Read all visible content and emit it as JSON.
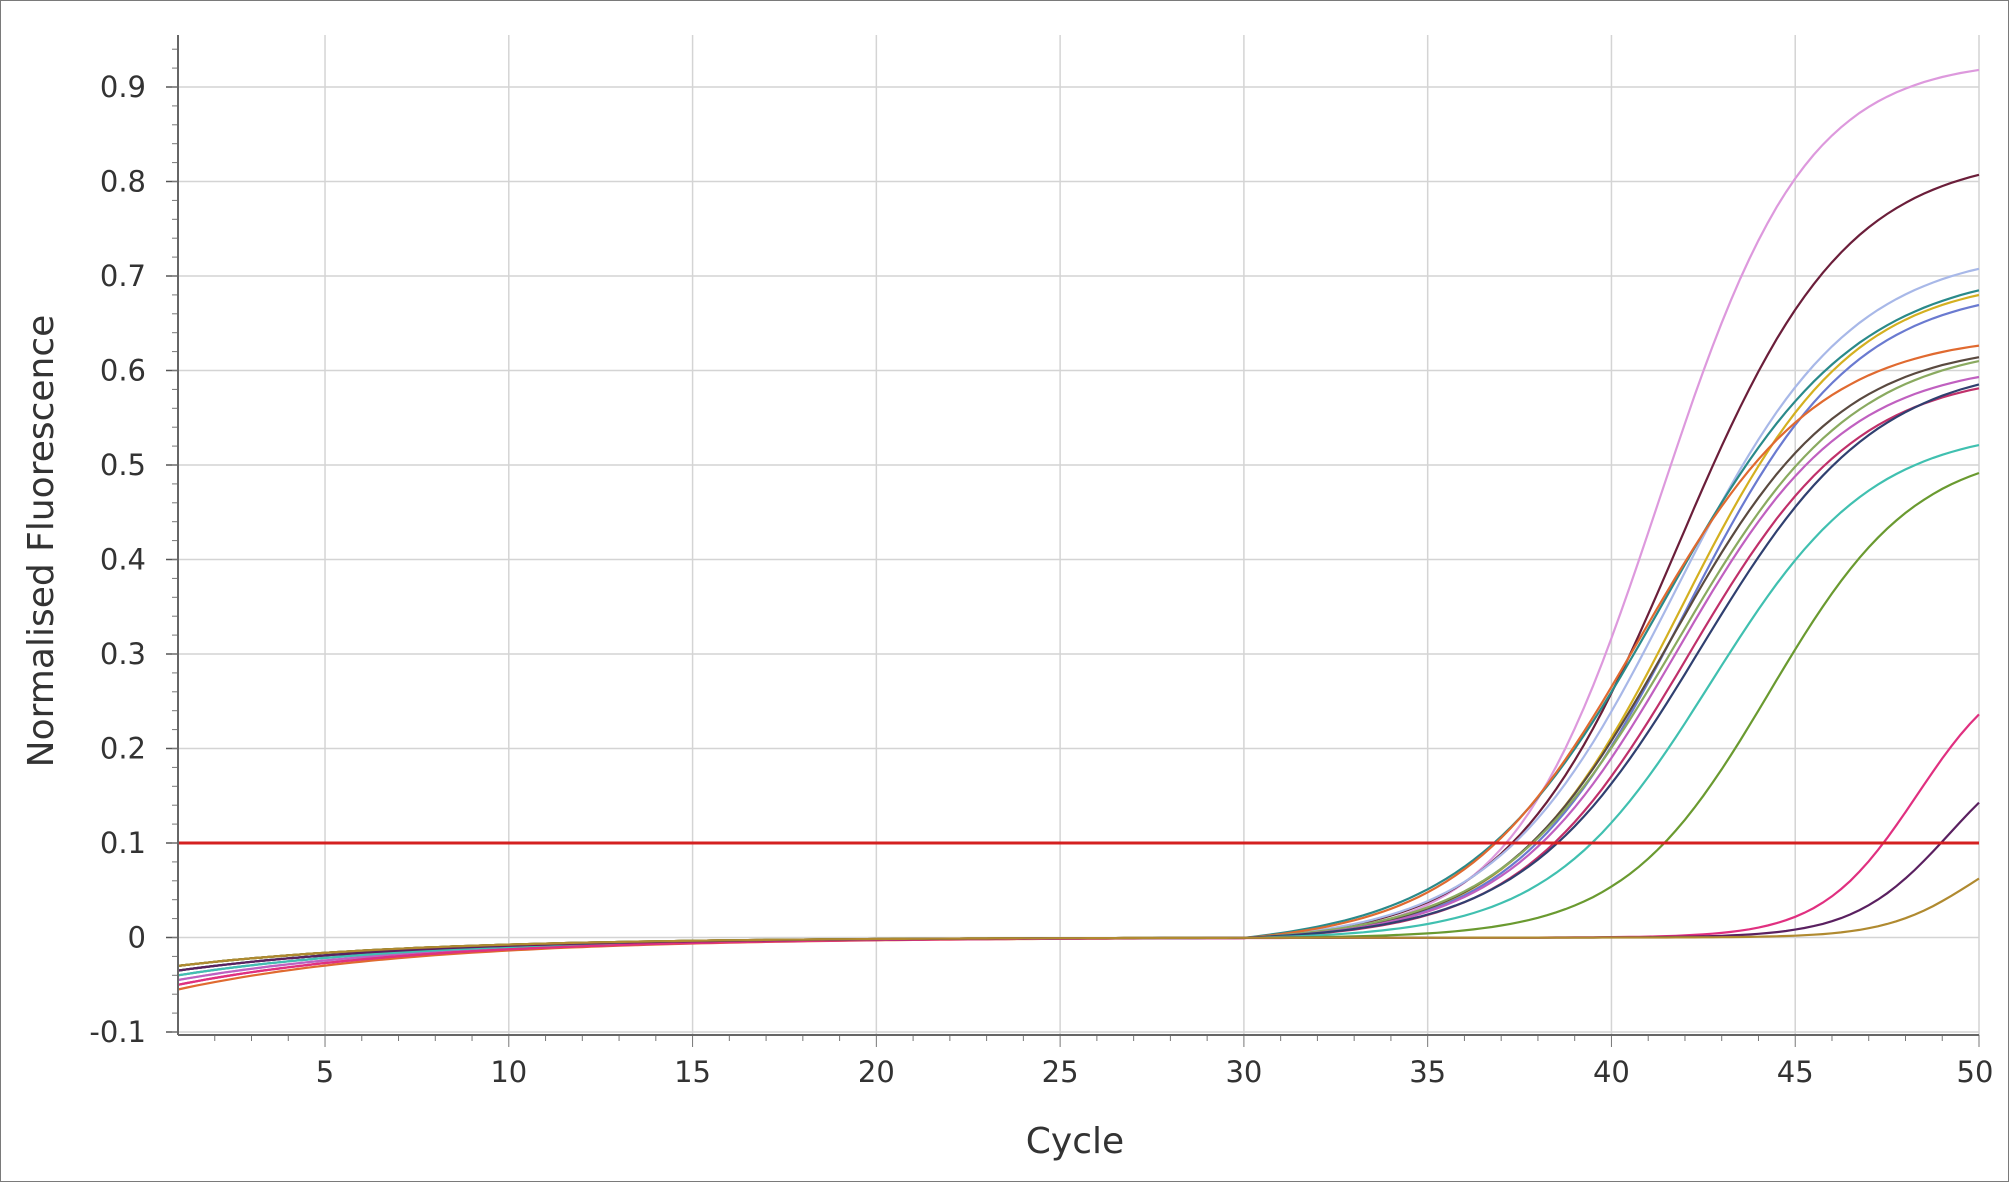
{
  "chart_data": {
    "type": "line",
    "title": "",
    "xlabel": "Cycle",
    "ylabel": "Normalised Fluorescence",
    "xlim": [
      1,
      50
    ],
    "ylim": [
      -0.1,
      0.95
    ],
    "x_ticks": [
      5,
      10,
      15,
      20,
      25,
      30,
      35,
      40,
      45,
      50
    ],
    "y_ticks": [
      -0.1,
      0,
      0.1,
      0.2,
      0.3,
      0.4,
      0.5,
      0.6,
      0.7,
      0.8,
      0.9
    ],
    "y_tick_labels": [
      "-0.1",
      "0",
      "0.1",
      "0.2",
      "0.3",
      "0.4",
      "0.5",
      "0.6",
      "0.7",
      "0.8",
      "0.9"
    ],
    "x_tick_labels": [
      "5",
      "10",
      "15",
      "20",
      "25",
      "30",
      "35",
      "40",
      "45",
      "50"
    ],
    "grid": true,
    "legend": "none",
    "threshold": {
      "value": 0.1,
      "color": "#d42020"
    },
    "series_model": "sigmoid: y = F * (1 - exp(-(x - 31)/T)) / (1 + exp(-(x - c)/k)), plateau F, midpoint c, slope k",
    "series": [
      {
        "color": "#dd99dd",
        "F": 0.93,
        "c": 41.3,
        "k": 2.0,
        "start": -0.04
      },
      {
        "color": "#6b1e3a",
        "F": 0.83,
        "c": 41.8,
        "k": 2.3,
        "start": -0.03
      },
      {
        "color": "#a8b8e8",
        "F": 0.73,
        "c": 41.7,
        "k": 2.4,
        "start": -0.045
      },
      {
        "color": "#2a8a8a",
        "F": 0.71,
        "c": 41.4,
        "k": 2.6,
        "start": -0.035
      },
      {
        "color": "#d4b020",
        "F": 0.7,
        "c": 41.9,
        "k": 2.3,
        "start": -0.03
      },
      {
        "color": "#6a7ad0",
        "F": 0.69,
        "c": 42.0,
        "k": 2.3,
        "start": -0.04
      },
      {
        "color": "#e06a30",
        "F": 0.64,
        "c": 40.8,
        "k": 2.4,
        "start": -0.055
      },
      {
        "color": "#5a4a40",
        "F": 0.63,
        "c": 41.6,
        "k": 2.3,
        "start": -0.03
      },
      {
        "color": "#8aaa60",
        "F": 0.63,
        "c": 41.8,
        "k": 2.4,
        "start": -0.035
      },
      {
        "color": "#c060c0",
        "F": 0.61,
        "c": 41.8,
        "k": 2.3,
        "start": -0.045
      },
      {
        "color": "#c0306a",
        "F": 0.6,
        "c": 42.1,
        "k": 2.3,
        "start": -0.05
      },
      {
        "color": "#304070",
        "F": 0.61,
        "c": 42.4,
        "k": 2.4,
        "start": -0.035
      },
      {
        "color": "#40c0b0",
        "F": 0.54,
        "c": 42.7,
        "k": 2.2,
        "start": -0.04
      },
      {
        "color": "#6a9a30",
        "F": 0.52,
        "c": 44.3,
        "k": 2.0,
        "start": -0.03
      },
      {
        "color": "#e03080",
        "F": 0.3,
        "c": 48.3,
        "k": 1.3,
        "start": -0.05
      },
      {
        "color": "#5a2060",
        "F": 0.22,
        "c": 49.2,
        "k": 1.3,
        "start": -0.035
      },
      {
        "color": "#b08a30",
        "F": 0.12,
        "c": 49.9,
        "k": 1.2,
        "start": -0.03
      }
    ]
  }
}
